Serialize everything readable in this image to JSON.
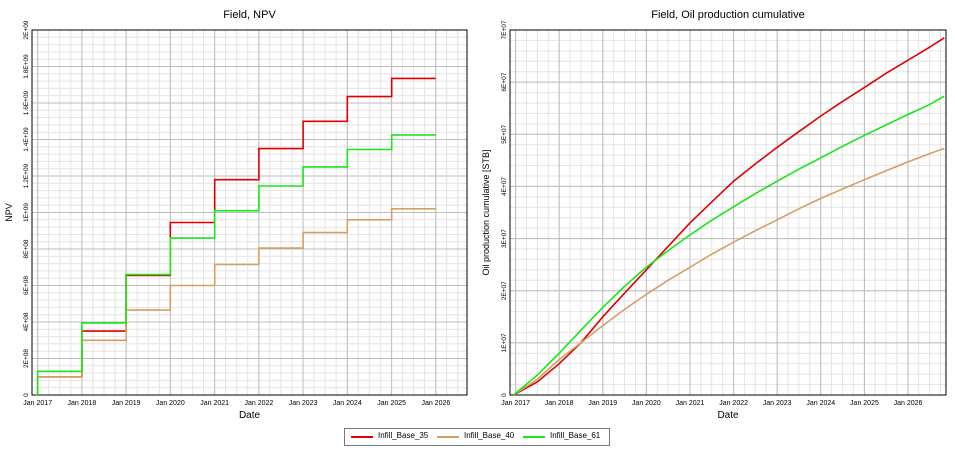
{
  "legend": {
    "entries": [
      {
        "name": "Infill_Base_35",
        "color": "#e00000"
      },
      {
        "name": "Infill_Base_40",
        "color": "#d4a060"
      },
      {
        "name": "Infill_Base_61",
        "color": "#19e619"
      }
    ]
  },
  "chart_data": [
    {
      "type": "line",
      "title": "Field, NPV",
      "xlabel": "Date",
      "ylabel": "NPV",
      "x_type": "date",
      "xlim": [
        "2016-11-15",
        "2026-09-15"
      ],
      "ylim": [
        0,
        2000000000
      ],
      "x_ticks": [
        "2017-01-01",
        "2018-01-01",
        "2019-01-01",
        "2020-01-01",
        "2021-01-01",
        "2022-01-01",
        "2023-01-01",
        "2024-01-01",
        "2025-01-01",
        "2026-01-01"
      ],
      "x_tick_labels": [
        "Jan 2017",
        "Jan 2018",
        "Jan 2019",
        "Jan 2020",
        "Jan 2021",
        "Jan 2022",
        "Jan 2023",
        "Jan 2024",
        "Jan 2025",
        "Jan 2026"
      ],
      "y_ticks": [
        0,
        200000000,
        400000000,
        600000000,
        800000000,
        1000000000,
        1200000000,
        1400000000,
        1600000000,
        1800000000,
        2000000000
      ],
      "y_tick_labels": [
        "0",
        "2E+08",
        "4E+08",
        "6E+08",
        "8E+08",
        "1E+09",
        "1.2E+09",
        "1.4E+09",
        "1.6E+09",
        "1.8E+09",
        "2E+09"
      ],
      "grid": true,
      "step": true,
      "series": [
        {
          "name": "Infill_Base_35",
          "color": "#e00000",
          "x": [
            "2016-12-15",
            "2017-01-01",
            "2018-01-01",
            "2019-01-01",
            "2020-01-01",
            "2021-01-01",
            "2022-01-01",
            "2023-01-01",
            "2024-01-01",
            "2025-01-01",
            "2025-12-31"
          ],
          "y": [
            0,
            100000000,
            350000000,
            655000000,
            945000000,
            1180000000,
            1350000000,
            1500000000,
            1635000000,
            1735000000,
            1735000000
          ]
        },
        {
          "name": "Infill_Base_40",
          "color": "#d4a060",
          "x": [
            "2016-12-15",
            "2017-01-01",
            "2018-01-01",
            "2019-01-01",
            "2020-01-01",
            "2021-01-01",
            "2022-01-01",
            "2023-01-01",
            "2024-01-01",
            "2025-01-01",
            "2025-12-31"
          ],
          "y": [
            0,
            100000000,
            300000000,
            465000000,
            600000000,
            715000000,
            805000000,
            890000000,
            960000000,
            1020000000,
            1020000000
          ]
        },
        {
          "name": "Infill_Base_61",
          "color": "#19e619",
          "x": [
            "2016-12-15",
            "2017-01-01",
            "2018-01-01",
            "2019-01-01",
            "2020-01-01",
            "2021-01-01",
            "2022-01-01",
            "2023-01-01",
            "2024-01-01",
            "2025-01-01",
            "2025-12-31"
          ],
          "y": [
            0,
            130000000,
            395000000,
            660000000,
            860000000,
            1010000000,
            1145000000,
            1250000000,
            1345000000,
            1425000000,
            1425000000
          ]
        }
      ]
    },
    {
      "type": "line",
      "title": "Field, Oil production cumulative",
      "xlabel": "Date",
      "ylabel": "Oil production cumulative [STB]",
      "x_type": "date",
      "xlim": [
        "2016-11-15",
        "2026-11-15"
      ],
      "ylim": [
        0,
        70000000
      ],
      "x_ticks": [
        "2017-01-01",
        "2018-01-01",
        "2019-01-01",
        "2020-01-01",
        "2021-01-01",
        "2022-01-01",
        "2023-01-01",
        "2024-01-01",
        "2025-01-01",
        "2026-01-01"
      ],
      "x_tick_labels": [
        "Jan 2017",
        "Jan 2018",
        "Jan 2019",
        "Jan 2020",
        "Jan 2021",
        "Jan 2022",
        "Jan 2023",
        "Jan 2024",
        "Jan 2025",
        "Jan 2026"
      ],
      "y_ticks": [
        0,
        10000000,
        20000000,
        30000000,
        40000000,
        50000000,
        60000000,
        70000000
      ],
      "y_tick_labels": [
        "0",
        "1E+07",
        "2E+07",
        "3E+07",
        "4E+07",
        "5E+07",
        "6E+07",
        "7E+07"
      ],
      "grid": true,
      "step": false,
      "series": [
        {
          "name": "Infill_Base_35",
          "color": "#e00000",
          "x": [
            "2016-12-15",
            "2017-07-01",
            "2018-01-01",
            "2018-07-01",
            "2019-01-01",
            "2019-07-01",
            "2020-01-01",
            "2020-07-01",
            "2021-01-01",
            "2021-07-01",
            "2022-01-01",
            "2022-07-01",
            "2023-01-01",
            "2023-07-01",
            "2024-01-01",
            "2024-07-01",
            "2025-01-01",
            "2025-07-01",
            "2026-01-01",
            "2026-07-01",
            "2026-11-01"
          ],
          "y": [
            0,
            2500000,
            6000000,
            10000000,
            15000000,
            19500000,
            24000000,
            28500000,
            33000000,
            37000000,
            41000000,
            44300000,
            47500000,
            50500000,
            53500000,
            56300000,
            59000000,
            61700000,
            64200000,
            66700000,
            68500000
          ]
        },
        {
          "name": "Infill_Base_40",
          "color": "#d4a060",
          "x": [
            "2016-12-15",
            "2017-07-01",
            "2018-01-01",
            "2018-07-01",
            "2019-01-01",
            "2019-07-01",
            "2020-01-01",
            "2020-07-01",
            "2021-01-01",
            "2021-07-01",
            "2022-01-01",
            "2022-07-01",
            "2023-01-01",
            "2023-07-01",
            "2024-01-01",
            "2024-07-01",
            "2025-01-01",
            "2025-07-01",
            "2026-01-01",
            "2026-07-01",
            "2026-11-01"
          ],
          "y": [
            0,
            3000000,
            6800000,
            10000000,
            13300000,
            16400000,
            19300000,
            22000000,
            24500000,
            27000000,
            29300000,
            31500000,
            33600000,
            35700000,
            37700000,
            39500000,
            41300000,
            43000000,
            44700000,
            46300000,
            47300000
          ]
        },
        {
          "name": "Infill_Base_61",
          "color": "#19e619",
          "x": [
            "2016-12-15",
            "2017-07-01",
            "2018-01-01",
            "2018-07-01",
            "2019-01-01",
            "2019-07-01",
            "2020-01-01",
            "2020-07-01",
            "2021-01-01",
            "2021-07-01",
            "2022-01-01",
            "2022-07-01",
            "2023-01-01",
            "2023-07-01",
            "2024-01-01",
            "2024-07-01",
            "2025-01-01",
            "2025-07-01",
            "2026-01-01",
            "2026-07-01",
            "2026-11-01"
          ],
          "y": [
            0,
            3800000,
            8000000,
            12400000,
            16800000,
            20800000,
            24500000,
            27700000,
            30700000,
            33500000,
            36100000,
            38600000,
            41000000,
            43300000,
            45500000,
            47700000,
            49800000,
            51800000,
            53800000,
            55700000,
            57300000
          ]
        }
      ]
    }
  ]
}
